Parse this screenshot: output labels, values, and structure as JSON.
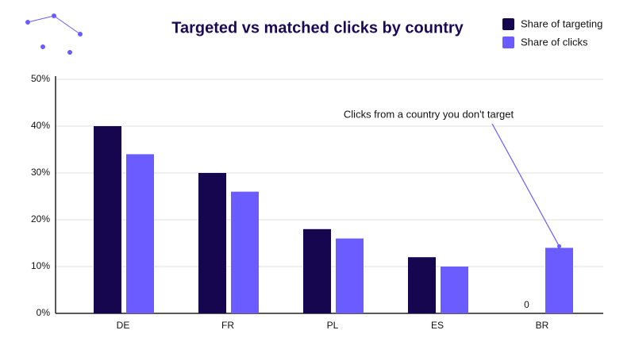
{
  "chart_data": {
    "type": "bar",
    "title": "Targeted vs matched clicks by country",
    "categories": [
      "DE",
      "FR",
      "PL",
      "ES",
      "BR"
    ],
    "series": [
      {
        "name": "Share of targeting",
        "color": "#16054f",
        "values": [
          40,
          30,
          18,
          12,
          0
        ]
      },
      {
        "name": "Share of clicks",
        "color": "#6a5cff",
        "values": [
          34,
          26,
          16,
          10,
          14
        ]
      }
    ],
    "ylim": [
      0,
      50
    ],
    "yticks": [
      {
        "value": 0,
        "label": "0%"
      },
      {
        "value": 10,
        "label": "10%"
      },
      {
        "value": 20,
        "label": "20%"
      },
      {
        "value": 30,
        "label": "30%"
      },
      {
        "value": 40,
        "label": "40%"
      },
      {
        "value": 50,
        "label": "50%"
      }
    ],
    "grid": true,
    "legend": "top-right",
    "annotation": "Clicks from a country you don't target"
  }
}
